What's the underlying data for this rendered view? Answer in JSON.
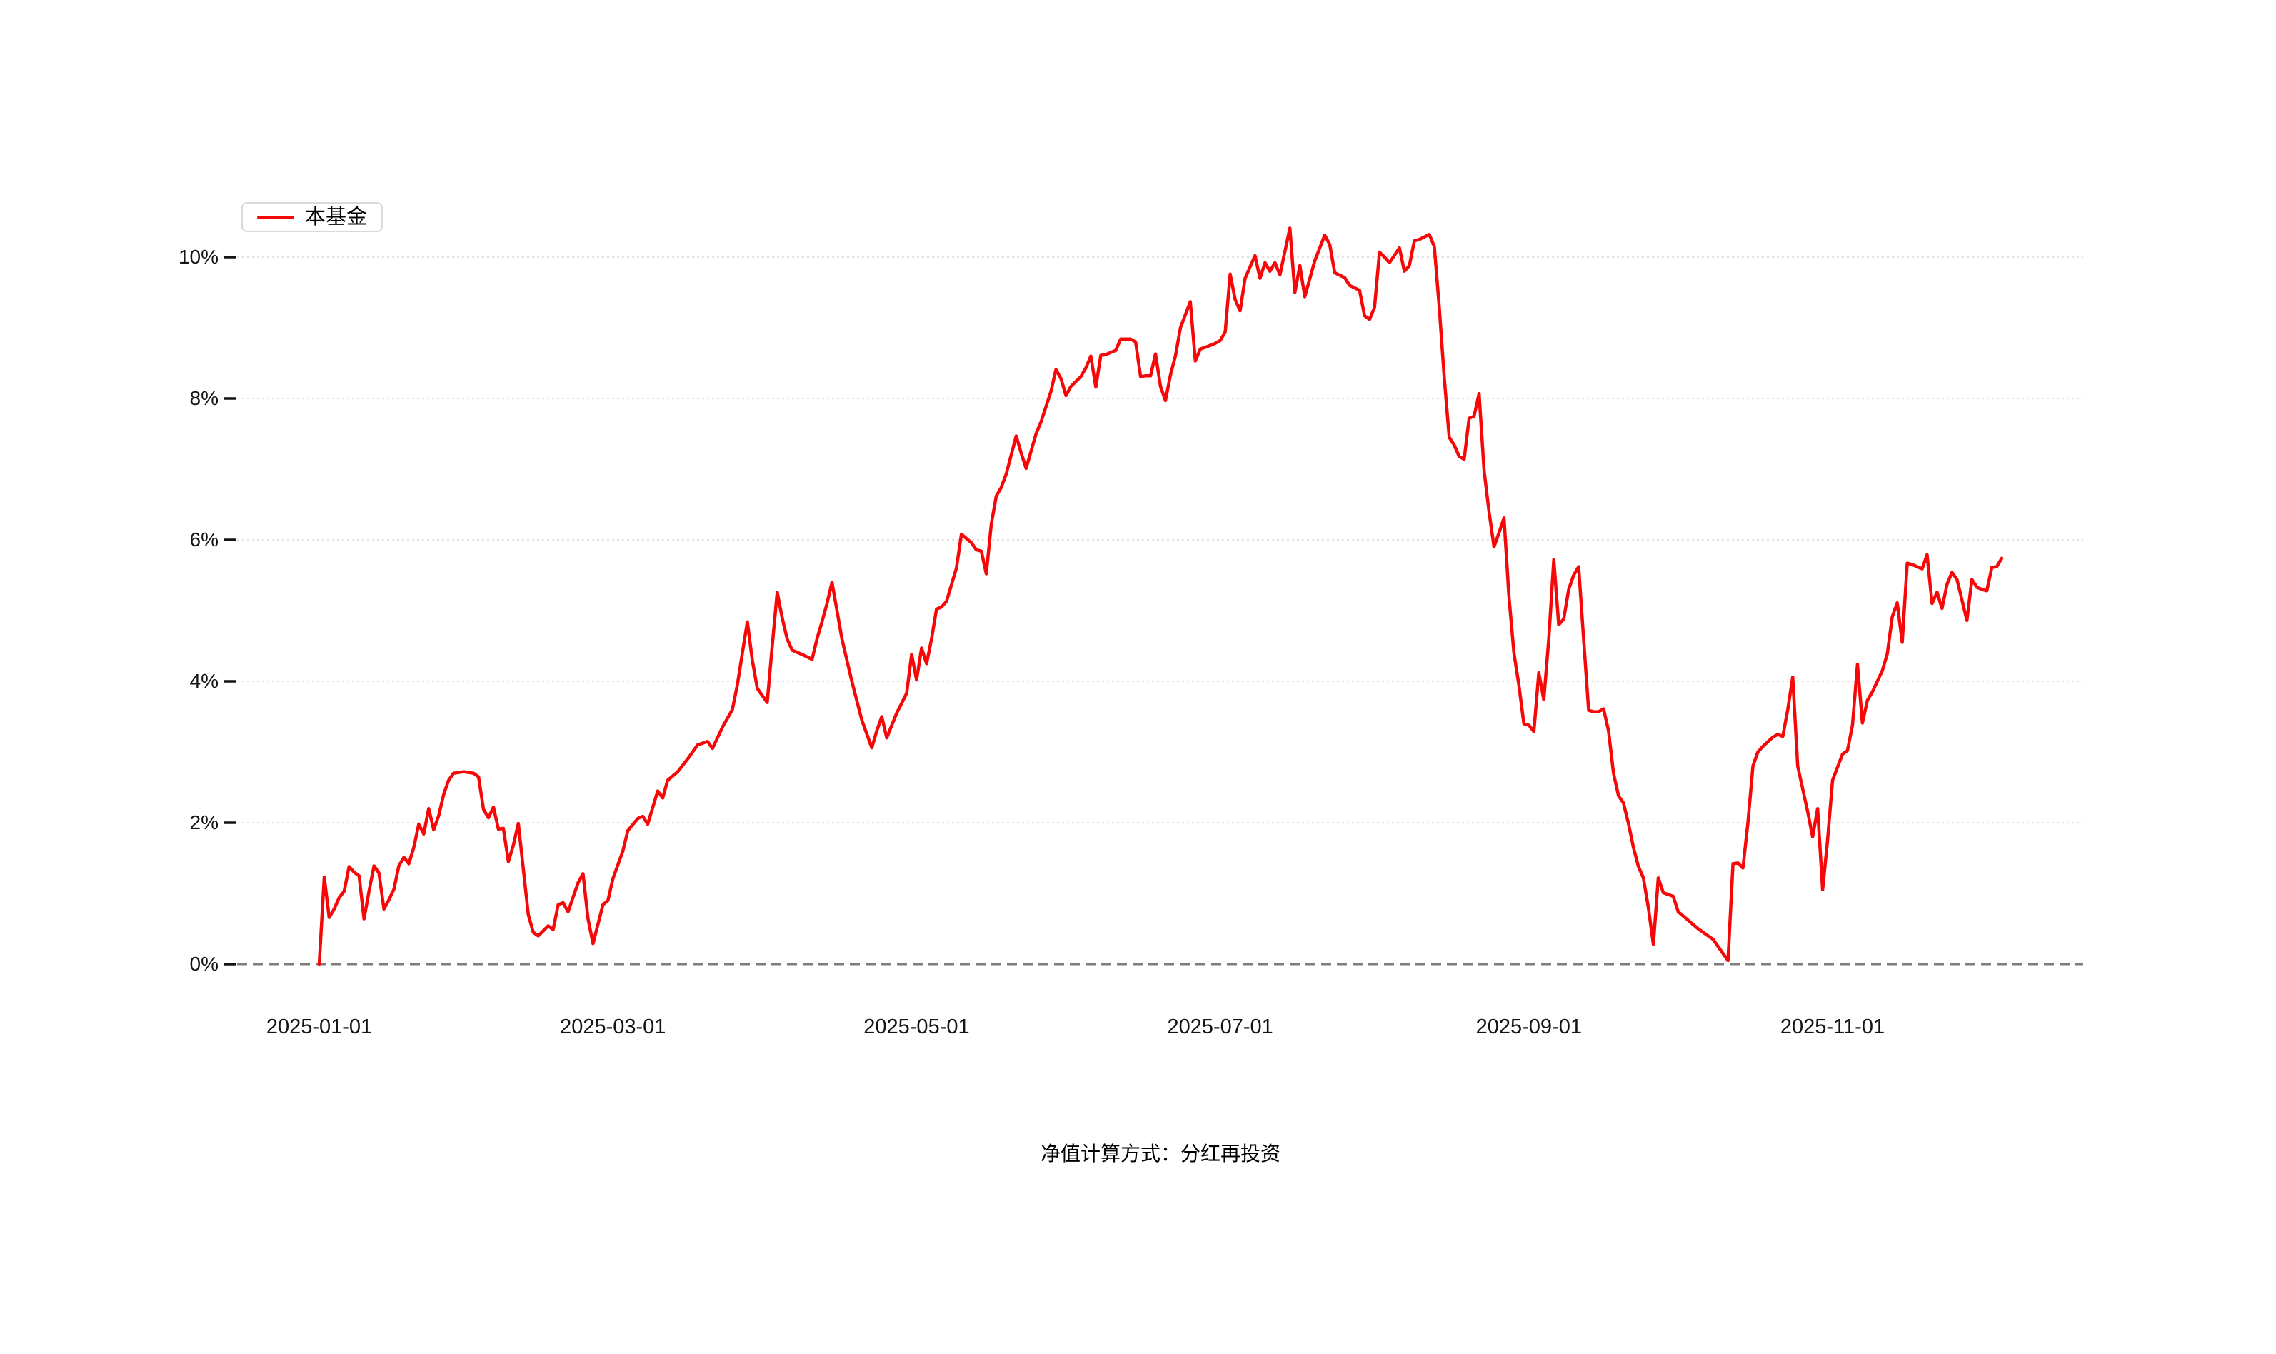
{
  "legend": {
    "items": [
      {
        "label": "本基金",
        "color": "#f60808"
      }
    ]
  },
  "caption": "净值计算方式：分红再投资",
  "colors": {
    "line": "#f60808",
    "grid_dotted": "#e2e2e2",
    "zero_line_dashed": "#7d7d7d",
    "axis_tick": "#141414",
    "axis_label": "#141414",
    "legend_border": "#d9d9d9",
    "background": "#ffffff"
  },
  "chart_data": {
    "type": "line",
    "title": "",
    "xlabel": "",
    "ylabel": "",
    "legend_position": "top-left",
    "grid": {
      "horizontal_dotted_lines": true,
      "zero_line_dashed": true,
      "vertical_lines": false
    },
    "x_axis": {
      "kind": "date",
      "start_date": "2025-01-01",
      "point_unit": "days_since_start",
      "tick_labels": [
        "2025-01-01",
        "2025-03-01",
        "2025-05-01",
        "2025-07-01",
        "2025-09-01",
        "2025-11-01"
      ],
      "tick_days": [
        0,
        59,
        120,
        181,
        243,
        304
      ],
      "max_day": 338
    },
    "y_axis": {
      "unit": "percent",
      "tick_labels": [
        "0%",
        "2%",
        "4%",
        "6%",
        "8%",
        "10%"
      ],
      "tick_values": [
        0,
        2,
        4,
        6,
        8,
        10
      ],
      "range": [
        0,
        10.5
      ]
    },
    "series": [
      {
        "name": "本基金",
        "color": "#f60808",
        "points": [
          [
            0,
            0.0
          ],
          [
            1,
            1.23
          ],
          [
            2,
            0.66
          ],
          [
            3,
            0.78
          ],
          [
            4,
            0.94
          ],
          [
            5,
            1.03
          ],
          [
            6,
            1.38
          ],
          [
            7,
            1.3
          ],
          [
            8,
            1.25
          ],
          [
            9,
            0.64
          ],
          [
            10,
            1.03
          ],
          [
            11,
            1.39
          ],
          [
            12,
            1.29
          ],
          [
            13,
            0.78
          ],
          [
            14,
            0.91
          ],
          [
            15,
            1.06
          ],
          [
            16,
            1.39
          ],
          [
            17,
            1.51
          ],
          [
            18,
            1.42
          ],
          [
            19,
            1.65
          ],
          [
            20,
            1.98
          ],
          [
            21,
            1.84
          ],
          [
            22,
            2.2
          ],
          [
            23,
            1.9
          ],
          [
            24,
            2.1
          ],
          [
            25,
            2.4
          ],
          [
            26,
            2.6
          ],
          [
            27,
            2.7
          ],
          [
            29,
            2.72
          ],
          [
            31,
            2.7
          ],
          [
            32,
            2.65
          ],
          [
            33,
            2.19
          ],
          [
            34,
            2.07
          ],
          [
            35,
            2.22
          ],
          [
            36,
            1.91
          ],
          [
            37,
            1.92
          ],
          [
            38,
            1.45
          ],
          [
            39,
            1.68
          ],
          [
            40,
            1.99
          ],
          [
            42,
            0.7
          ],
          [
            43,
            0.45
          ],
          [
            44,
            0.4
          ],
          [
            46,
            0.54
          ],
          [
            47,
            0.49
          ],
          [
            48,
            0.84
          ],
          [
            49,
            0.87
          ],
          [
            50,
            0.74
          ],
          [
            52,
            1.15
          ],
          [
            53,
            1.28
          ],
          [
            54,
            0.64
          ],
          [
            55,
            0.29
          ],
          [
            57,
            0.84
          ],
          [
            58,
            0.9
          ],
          [
            59,
            1.21
          ],
          [
            61,
            1.6
          ],
          [
            62,
            1.89
          ],
          [
            64,
            2.06
          ],
          [
            65,
            2.09
          ],
          [
            66,
            1.98
          ],
          [
            68,
            2.45
          ],
          [
            69,
            2.35
          ],
          [
            70,
            2.6
          ],
          [
            72,
            2.72
          ],
          [
            74,
            2.9
          ],
          [
            76,
            3.1
          ],
          [
            78,
            3.15
          ],
          [
            79,
            3.05
          ],
          [
            81,
            3.35
          ],
          [
            83,
            3.6
          ],
          [
            84,
            3.95
          ],
          [
            85,
            4.4
          ],
          [
            86,
            4.84
          ],
          [
            87,
            4.3
          ],
          [
            88,
            3.9
          ],
          [
            90,
            3.7
          ],
          [
            91,
            4.5
          ],
          [
            92,
            5.26
          ],
          [
            93,
            4.9
          ],
          [
            94,
            4.6
          ],
          [
            95,
            4.44
          ],
          [
            97,
            4.38
          ],
          [
            99,
            4.31
          ],
          [
            100,
            4.6
          ],
          [
            101,
            4.84
          ],
          [
            102,
            5.1
          ],
          [
            103,
            5.4
          ],
          [
            105,
            4.6
          ],
          [
            107,
            4.0
          ],
          [
            109,
            3.45
          ],
          [
            111,
            3.06
          ],
          [
            112,
            3.3
          ],
          [
            113,
            3.5
          ],
          [
            114,
            3.2
          ],
          [
            116,
            3.55
          ],
          [
            118,
            3.83
          ],
          [
            119,
            4.38
          ],
          [
            120,
            4.02
          ],
          [
            121,
            4.47
          ],
          [
            122,
            4.25
          ],
          [
            123,
            4.6
          ],
          [
            124,
            5.02
          ],
          [
            125,
            5.05
          ],
          [
            126,
            5.13
          ],
          [
            128,
            5.6
          ],
          [
            129,
            6.08
          ],
          [
            131,
            5.96
          ],
          [
            132,
            5.86
          ],
          [
            133,
            5.84
          ],
          [
            134,
            5.52
          ],
          [
            135,
            6.22
          ],
          [
            136,
            6.62
          ],
          [
            137,
            6.74
          ],
          [
            138,
            6.93
          ],
          [
            139,
            7.2
          ],
          [
            140,
            7.47
          ],
          [
            141,
            7.23
          ],
          [
            142,
            7.01
          ],
          [
            144,
            7.5
          ],
          [
            145,
            7.67
          ],
          [
            147,
            8.1
          ],
          [
            148,
            8.41
          ],
          [
            149,
            8.28
          ],
          [
            150,
            8.04
          ],
          [
            151,
            8.17
          ],
          [
            153,
            8.31
          ],
          [
            154,
            8.43
          ],
          [
            155,
            8.6
          ],
          [
            156,
            8.16
          ],
          [
            157,
            8.61
          ],
          [
            158,
            8.62
          ],
          [
            159,
            8.65
          ],
          [
            160,
            8.68
          ],
          [
            161,
            8.84
          ],
          [
            163,
            8.84
          ],
          [
            164,
            8.8
          ],
          [
            165,
            8.31
          ],
          [
            166,
            8.32
          ],
          [
            167,
            8.32
          ],
          [
            168,
            8.63
          ],
          [
            169,
            8.17
          ],
          [
            170,
            7.97
          ],
          [
            171,
            8.33
          ],
          [
            172,
            8.6
          ],
          [
            173,
            9.0
          ],
          [
            175,
            9.37
          ],
          [
            176,
            8.53
          ],
          [
            177,
            8.7
          ],
          [
            179,
            8.75
          ],
          [
            180,
            8.78
          ],
          [
            181,
            8.82
          ],
          [
            182,
            8.94
          ],
          [
            183,
            9.76
          ],
          [
            184,
            9.4
          ],
          [
            185,
            9.24
          ],
          [
            186,
            9.7
          ],
          [
            188,
            10.02
          ],
          [
            189,
            9.7
          ],
          [
            190,
            9.92
          ],
          [
            191,
            9.8
          ],
          [
            192,
            9.92
          ],
          [
            193,
            9.75
          ],
          [
            195,
            10.41
          ],
          [
            196,
            9.5
          ],
          [
            197,
            9.88
          ],
          [
            198,
            9.44
          ],
          [
            200,
            9.95
          ],
          [
            202,
            10.31
          ],
          [
            203,
            10.18
          ],
          [
            204,
            9.78
          ],
          [
            206,
            9.71
          ],
          [
            207,
            9.6
          ],
          [
            209,
            9.53
          ],
          [
            210,
            9.17
          ],
          [
            211,
            9.12
          ],
          [
            212,
            9.29
          ],
          [
            213,
            10.07
          ],
          [
            214,
            10.0
          ],
          [
            215,
            9.92
          ],
          [
            217,
            10.13
          ],
          [
            218,
            9.8
          ],
          [
            219,
            9.88
          ],
          [
            220,
            10.23
          ],
          [
            221,
            10.25
          ],
          [
            223,
            10.32
          ],
          [
            224,
            10.15
          ],
          [
            225,
            9.3
          ],
          [
            226,
            8.3
          ],
          [
            227,
            7.45
          ],
          [
            228,
            7.34
          ],
          [
            229,
            7.18
          ],
          [
            230,
            7.14
          ],
          [
            231,
            7.72
          ],
          [
            232,
            7.75
          ],
          [
            233,
            8.07
          ],
          [
            234,
            6.98
          ],
          [
            235,
            6.4
          ],
          [
            236,
            5.9
          ],
          [
            237,
            6.1
          ],
          [
            238,
            6.31
          ],
          [
            239,
            5.2
          ],
          [
            240,
            4.4
          ],
          [
            241,
            3.94
          ],
          [
            242,
            3.4
          ],
          [
            243,
            3.38
          ],
          [
            244,
            3.29
          ],
          [
            245,
            4.12
          ],
          [
            246,
            3.74
          ],
          [
            247,
            4.6
          ],
          [
            248,
            5.72
          ],
          [
            249,
            4.8
          ],
          [
            250,
            4.88
          ],
          [
            251,
            5.3
          ],
          [
            252,
            5.5
          ],
          [
            253,
            5.62
          ],
          [
            254,
            4.59
          ],
          [
            255,
            3.59
          ],
          [
            256,
            3.57
          ],
          [
            257,
            3.57
          ],
          [
            258,
            3.61
          ],
          [
            259,
            3.3
          ],
          [
            260,
            2.7
          ],
          [
            261,
            2.38
          ],
          [
            262,
            2.28
          ],
          [
            263,
            1.99
          ],
          [
            264,
            1.65
          ],
          [
            265,
            1.38
          ],
          [
            266,
            1.22
          ],
          [
            267,
            0.8
          ],
          [
            268,
            0.28
          ],
          [
            269,
            1.22
          ],
          [
            270,
            1.01
          ],
          [
            272,
            0.96
          ],
          [
            273,
            0.74
          ],
          [
            275,
            0.62
          ],
          [
            277,
            0.5
          ],
          [
            280,
            0.35
          ],
          [
            282,
            0.15
          ],
          [
            283,
            0.05
          ],
          [
            284,
            1.42
          ],
          [
            285,
            1.43
          ],
          [
            286,
            1.36
          ],
          [
            287,
            2.0
          ],
          [
            288,
            2.8
          ],
          [
            289,
            3.0
          ],
          [
            290,
            3.08
          ],
          [
            292,
            3.21
          ],
          [
            293,
            3.25
          ],
          [
            294,
            3.22
          ],
          [
            295,
            3.6
          ],
          [
            296,
            4.06
          ],
          [
            297,
            2.8
          ],
          [
            299,
            2.16
          ],
          [
            300,
            1.8
          ],
          [
            301,
            2.2
          ],
          [
            302,
            1.05
          ],
          [
            303,
            1.75
          ],
          [
            304,
            2.6
          ],
          [
            306,
            2.97
          ],
          [
            307,
            3.02
          ],
          [
            308,
            3.38
          ],
          [
            309,
            4.24
          ],
          [
            310,
            3.41
          ],
          [
            311,
            3.73
          ],
          [
            312,
            3.85
          ],
          [
            314,
            4.15
          ],
          [
            315,
            4.39
          ],
          [
            316,
            4.91
          ],
          [
            317,
            5.11
          ],
          [
            318,
            4.55
          ],
          [
            319,
            5.67
          ],
          [
            320,
            5.65
          ],
          [
            321,
            5.62
          ],
          [
            322,
            5.59
          ],
          [
            323,
            5.79
          ],
          [
            324,
            5.1
          ],
          [
            325,
            5.26
          ],
          [
            326,
            5.03
          ],
          [
            327,
            5.37
          ],
          [
            328,
            5.54
          ],
          [
            329,
            5.44
          ],
          [
            331,
            4.86
          ],
          [
            332,
            5.44
          ],
          [
            333,
            5.33
          ],
          [
            334,
            5.3
          ],
          [
            335,
            5.28
          ],
          [
            336,
            5.61
          ],
          [
            337,
            5.62
          ],
          [
            338,
            5.74
          ]
        ]
      }
    ]
  }
}
